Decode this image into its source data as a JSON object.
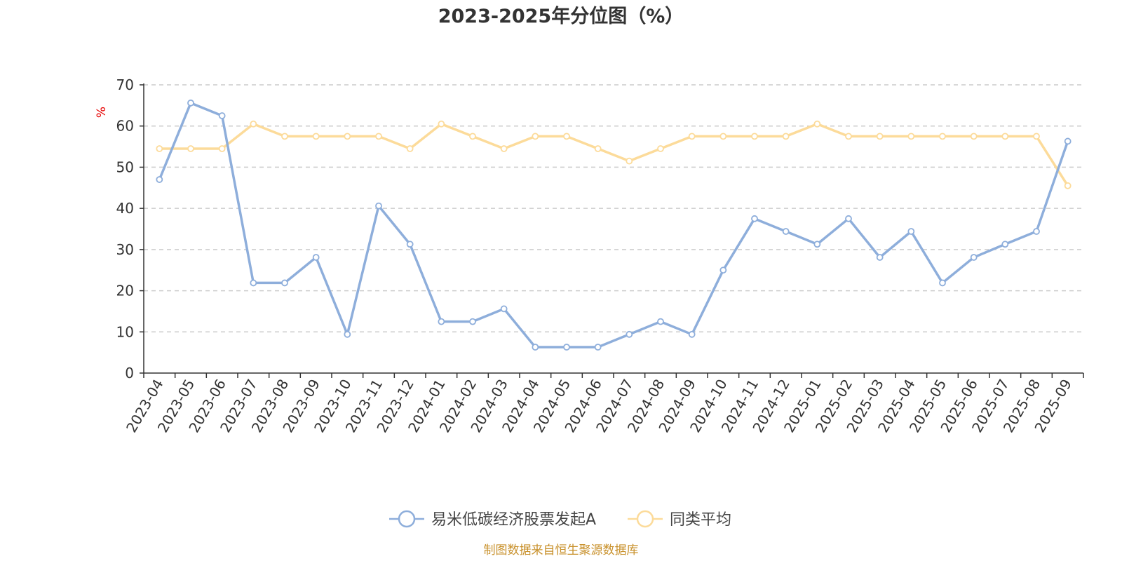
{
  "chart_data": {
    "type": "line",
    "title": "2023-2025年分位图（%）",
    "ylabel": "%",
    "xlabel": "",
    "ylim": [
      0,
      70
    ],
    "yticks": [
      0,
      10,
      20,
      30,
      40,
      50,
      60,
      70
    ],
    "grid": true,
    "legend_position": "bottom-center",
    "categories": [
      "2023-04",
      "2023-05",
      "2023-06",
      "2023-07",
      "2023-08",
      "2023-09",
      "2023-10",
      "2023-11",
      "2023-12",
      "2024-01",
      "2024-02",
      "2024-03",
      "2024-04",
      "2024-05",
      "2024-06",
      "2024-07",
      "2024-08",
      "2024-09",
      "2024-10",
      "2024-11",
      "2024-12",
      "2025-01",
      "2025-02",
      "2025-03",
      "2025-04",
      "2025-05",
      "2025-06",
      "2025-07",
      "2025-08",
      "2025-09"
    ],
    "series": [
      {
        "name": "易米低碳经济股票发起A",
        "color": "#8eaedb",
        "values": [
          47,
          65.6,
          62.5,
          21.9,
          21.9,
          28.1,
          9.4,
          40.6,
          31.3,
          12.5,
          12.5,
          15.6,
          6.3,
          6.3,
          6.3,
          9.4,
          12.5,
          9.4,
          25,
          37.5,
          34.4,
          31.3,
          37.5,
          28.1,
          34.4,
          21.9,
          28.1,
          31.3,
          34.4,
          56.3
        ]
      },
      {
        "name": "同类平均",
        "color": "#fcdb9a",
        "values": [
          54.5,
          54.5,
          54.5,
          60.5,
          57.5,
          57.5,
          57.5,
          57.5,
          54.5,
          60.5,
          57.5,
          54.5,
          57.5,
          57.5,
          54.5,
          51.5,
          54.5,
          57.5,
          57.5,
          57.5,
          57.5,
          60.5,
          57.5,
          57.5,
          57.5,
          57.5,
          57.5,
          57.5,
          57.5,
          45.5
        ]
      }
    ],
    "source": "制图数据来自恒生聚源数据库"
  }
}
